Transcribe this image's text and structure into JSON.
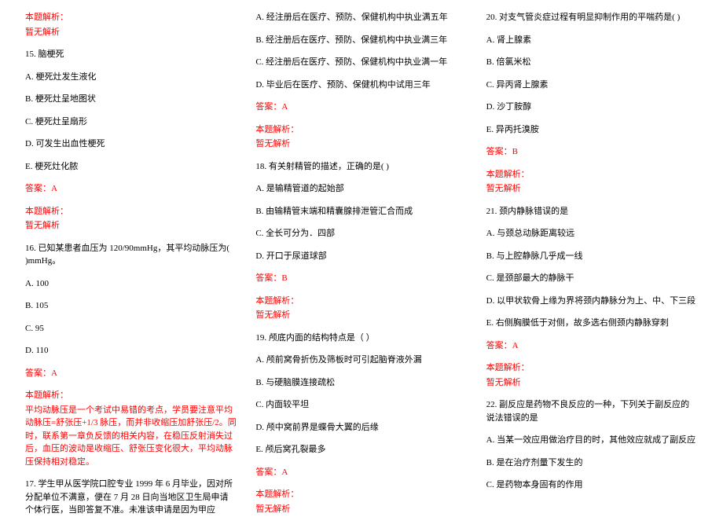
{
  "labels": {
    "analysis": "本题解析：",
    "no_analysis": "暂无解析",
    "answer_prefix": "答案："
  },
  "col1": {
    "q15": {
      "title": "15. 脑梗死",
      "a": "A. 梗死灶发生液化",
      "b": "B. 梗死灶呈地图状",
      "c": "C. 梗死灶呈扇形",
      "d": "D. 可发生出血性梗死",
      "e": "E. 梗死灶化脓",
      "answer": "A"
    },
    "q16": {
      "title": "16. 已知某患者血压为 120/90mmHg，其平均动脉压为(    )mmHg。",
      "a": "A. 100",
      "b": "B. 105",
      "c": "C. 95",
      "d": "D. 110",
      "answer": "A",
      "expl": "平均动脉压是一个考试中易错的考点，学员要注意平均动脉压=舒张压+1/3 脉压，而并非收缩压加舒张压/2。同时，联系第一章负反馈的相关内容，在稳压反射消失过后，血压的波动是收缩压、舒张压变化很大，平均动脉压保持相对稳定。"
    },
    "q17": {
      "title": "17. 学生甲从医学院口腔专业 1999 年 6 月毕业，因对所分配单位不满意，便在 7 月 28 日向当地区卫生局申请个体行医，当即答复不准。未准该申请是因为甲应"
    }
  },
  "col2": {
    "q17opts": {
      "a": "A. 经注册后在医疗、预防、保健机构中执业满五年",
      "b": "B. 经注册后在医疗、预防、保健机构中执业满三年",
      "c": "C. 经注册后在医疗、预防、保健机构中执业满一年",
      "d": "D. 毕业后在医疗、预防、保健机构中试用三年",
      "answer": "A"
    },
    "q18": {
      "title": "18. 有关射精管的描述，正确的是(    )",
      "a": "A. 是输精管道的起始部",
      "b": "B. 由输精管末端和精囊腺排泄管汇合而成",
      "c": "C. 全长可分为．四部",
      "d": "D. 开口于尿道球部",
      "answer": "B"
    },
    "q19": {
      "title": "19. 颅底内面的结构特点是（   ）",
      "a": "A. 颅前窝骨折伤及筛板时可引起脑脊液外漏",
      "b": "B. 与硬脑膜连接疏松",
      "c": "C. 内面较平坦",
      "d": "D. 颅中窝前界是蝶骨大翼的后缘",
      "e": "E. 颅后窝孔裂最多",
      "answer": "A"
    }
  },
  "col3": {
    "q20": {
      "title": "20. 对支气管炎症过程有明显抑制作用的平喘药是(    )",
      "a": "A. 肾上腺素",
      "b": "B. 倍氯米松",
      "c": "C. 异丙肾上腺素",
      "d": "D. 沙丁胺醇",
      "e": "E. 异丙托溴胺",
      "answer": "B"
    },
    "q21": {
      "title": "21. 颈内静脉错误的是",
      "a": "A. 与颈总动脉距离较远",
      "b": "B. 与上腔静脉几乎成一线",
      "c": "C. 是颈部最大的静脉干",
      "d": "D. 以甲状软骨上缘为界将颈内静脉分为上、中、下三段",
      "e": "E. 右侧胸膜低于对侧，故多选右侧颈内静脉穿刺",
      "answer": "A"
    },
    "q22": {
      "title": "22.  副反应是药物不良反应的一种，下列关于副反应的说法错误的是",
      "a": "A. 当某一效应用做治疗目的时，其他效应就成了副反应",
      "b": "B. 是在治疗剂量下发生的",
      "c": "C. 是药物本身固有的作用"
    }
  }
}
